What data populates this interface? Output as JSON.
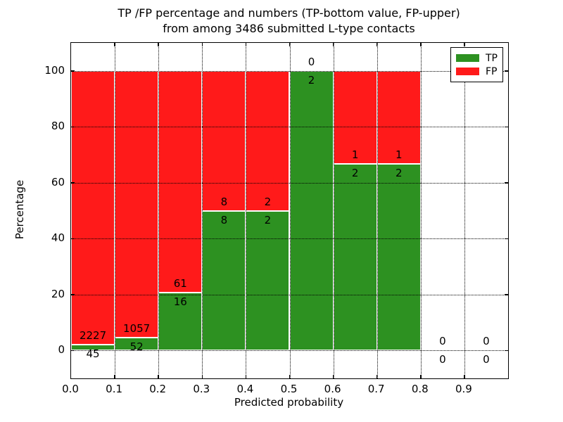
{
  "title": {
    "line1": "TP /FP percentage and numbers (TP-bottom value, FP-upper)",
    "line2": "from among 3486 submitted L-type contacts"
  },
  "axes": {
    "xlabel": "Predicted probability",
    "ylabel": "Percentage",
    "x_tick_labels": [
      "0.0",
      "0.1",
      "0.2",
      "0.3",
      "0.4",
      "0.5",
      "0.6",
      "0.7",
      "0.8",
      "0.9"
    ],
    "x_tick_values": [
      0,
      0.1,
      0.2,
      0.3,
      0.4,
      0.5,
      0.6,
      0.7,
      0.8,
      0.9
    ],
    "y_tick_labels": [
      "0",
      "20",
      "40",
      "60",
      "80",
      "100"
    ],
    "y_tick_values": [
      0,
      20,
      40,
      60,
      80,
      100
    ],
    "xlim": [
      0,
      1
    ],
    "ylim": [
      -10,
      110
    ],
    "grid": true
  },
  "legend": {
    "position": "upper-right",
    "items": [
      {
        "label": "TP",
        "color": "#2d9121"
      },
      {
        "label": "FP",
        "color": "#ff1a1a"
      }
    ]
  },
  "colors": {
    "tp": "#2d9121",
    "fp": "#ff1a1a",
    "bar_edge": "#ffffff",
    "text": "#000000",
    "background": "#ffffff"
  },
  "chart_data": {
    "type": "bar",
    "stacked": true,
    "normalized_to_percent": true,
    "title": "TP /FP percentage and numbers (TP-bottom value, FP-upper) from among 3486 submitted L-type contacts",
    "xlabel": "Predicted probability",
    "ylabel": "Percentage",
    "total_submitted": 3486,
    "bin_width": 0.1,
    "label_convention": "FP count shown above the TP/FP boundary, TP count shown below it",
    "bins": [
      {
        "range": [
          0.0,
          0.1
        ],
        "tp": 45,
        "fp": 2227,
        "tp_percent": 1.98,
        "fp_percent": 98.02
      },
      {
        "range": [
          0.1,
          0.2
        ],
        "tp": 52,
        "fp": 1057,
        "tp_percent": 4.69,
        "fp_percent": 95.31
      },
      {
        "range": [
          0.2,
          0.3
        ],
        "tp": 16,
        "fp": 61,
        "tp_percent": 20.78,
        "fp_percent": 79.22
      },
      {
        "range": [
          0.3,
          0.4
        ],
        "tp": 8,
        "fp": 8,
        "tp_percent": 50.0,
        "fp_percent": 50.0
      },
      {
        "range": [
          0.4,
          0.5
        ],
        "tp": 2,
        "fp": 2,
        "tp_percent": 50.0,
        "fp_percent": 50.0
      },
      {
        "range": [
          0.5,
          0.6
        ],
        "tp": 2,
        "fp": 0,
        "tp_percent": 100.0,
        "fp_percent": 0.0
      },
      {
        "range": [
          0.6,
          0.7
        ],
        "tp": 2,
        "fp": 1,
        "tp_percent": 66.67,
        "fp_percent": 33.33
      },
      {
        "range": [
          0.7,
          0.8
        ],
        "tp": 2,
        "fp": 1,
        "tp_percent": 66.67,
        "fp_percent": 33.33
      },
      {
        "range": [
          0.8,
          0.9
        ],
        "tp": 0,
        "fp": 0,
        "tp_percent": 0,
        "fp_percent": 0
      },
      {
        "range": [
          0.9,
          1.0
        ],
        "tp": 0,
        "fp": 0,
        "tp_percent": 0,
        "fp_percent": 0
      }
    ],
    "series": [
      {
        "name": "TP",
        "color": "#2d9121",
        "counts": [
          45,
          52,
          16,
          8,
          2,
          2,
          2,
          2,
          0,
          0
        ]
      },
      {
        "name": "FP",
        "color": "#ff1a1a",
        "counts": [
          2227,
          1057,
          61,
          8,
          2,
          0,
          1,
          1,
          0,
          0
        ]
      }
    ]
  }
}
